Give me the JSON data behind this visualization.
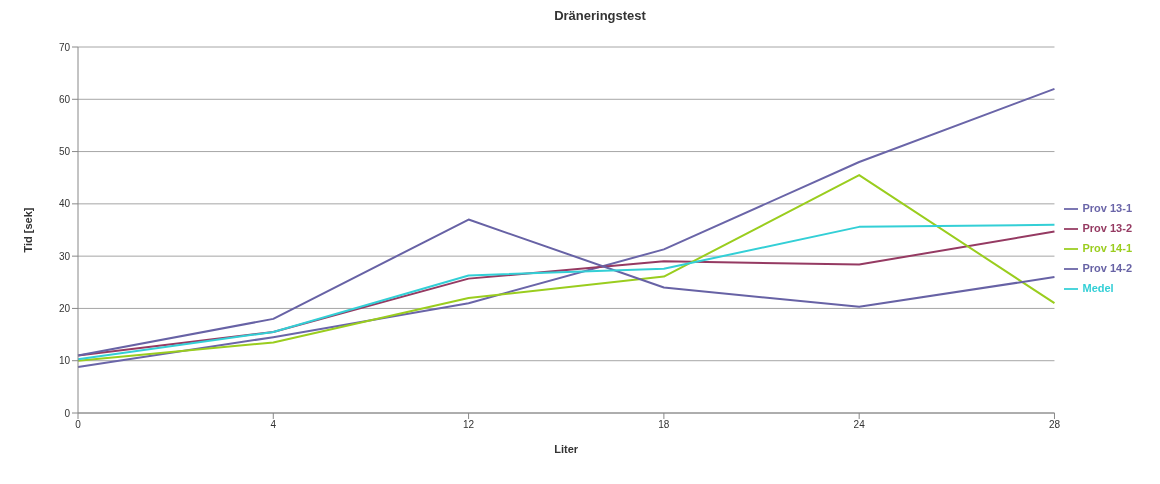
{
  "chart_data": {
    "type": "line",
    "title": "Dräneringstest",
    "xlabel": "Liter",
    "ylabel": "Tid [sek]",
    "categories": [
      "0",
      "4",
      "12",
      "18",
      "24",
      "28"
    ],
    "series": [
      {
        "name": "Prov 13-1",
        "color": "#6a65a8",
        "values": [
          8.8,
          14.5,
          21,
          31.3,
          48,
          62
        ]
      },
      {
        "name": "Prov 13-2",
        "color": "#953a62",
        "values": [
          11,
          15.5,
          25.7,
          29,
          28.4,
          34.7
        ]
      },
      {
        "name": "Prov 14-1",
        "color": "#9acd1e",
        "values": [
          10,
          13.5,
          22,
          26.1,
          45.5,
          21
        ]
      },
      {
        "name": "Prov 14-2",
        "color": "#6762a5",
        "values": [
          11,
          18,
          37,
          24,
          20.3,
          26
        ]
      },
      {
        "name": "Medel",
        "color": "#33cfd6",
        "values": [
          10.3,
          15.5,
          26.3,
          27.6,
          35.6,
          36
        ]
      }
    ],
    "ylim": [
      0,
      70
    ],
    "yticks": [
      0,
      10,
      20,
      30,
      40,
      50,
      60,
      70
    ],
    "grid": "y",
    "legend": "right",
    "marker": "none",
    "line_style": "solid"
  }
}
